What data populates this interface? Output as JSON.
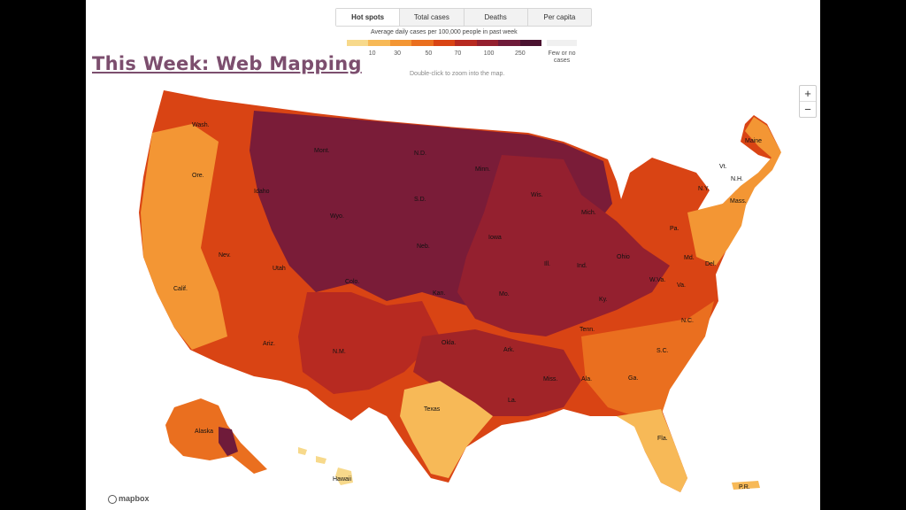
{
  "slide_title": "This Week: Web Mapping",
  "tabs": [
    "Hot spots",
    "Total cases",
    "Deaths",
    "Per capita"
  ],
  "legend": {
    "title": "Average daily cases per 100,000 people in past week",
    "colors": [
      "#f7d98b",
      "#f7b957",
      "#f39634",
      "#ea6f1f",
      "#d94414",
      "#b72a21",
      "#94202f",
      "#6f1b3a",
      "#4a1230"
    ],
    "ticks": [
      "10",
      "30",
      "50",
      "70",
      "100",
      "250"
    ],
    "no_data_label": "Few or no cases",
    "no_data_color": "#f0f0f0"
  },
  "map_hint": "Double-click to zoom into the map.",
  "zoom": {
    "in": "+",
    "out": "−"
  },
  "attribution": "mapbox",
  "state_labels": [
    "Wash.",
    "Ore.",
    "Calif.",
    "Nev.",
    "Idaho",
    "Mont.",
    "Wyo.",
    "Utah",
    "Ariz.",
    "Colo.",
    "N.M.",
    "N.D.",
    "S.D.",
    "Neb.",
    "Kan.",
    "Okla.",
    "Texas",
    "Minn.",
    "Iowa",
    "Mo.",
    "Ark.",
    "La.",
    "Wis.",
    "Ill.",
    "Mich.",
    "Ind.",
    "Ohio",
    "Ky.",
    "Tenn.",
    "Miss.",
    "Ala.",
    "Ga.",
    "Fla.",
    "S.C.",
    "N.C.",
    "Va.",
    "W.Va.",
    "Pa.",
    "N.Y.",
    "Vt.",
    "N.H.",
    "Maine",
    "Mass.",
    "Md.",
    "Del.",
    "Alaska",
    "Hawaii",
    "P.R."
  ]
}
